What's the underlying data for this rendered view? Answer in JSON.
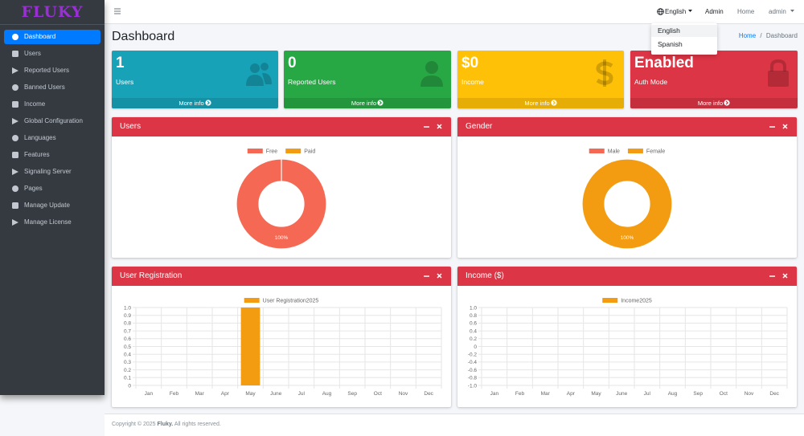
{
  "brand": "FLUKY",
  "sidebar": {
    "items": [
      "Dashboard",
      "Users",
      "Reported Users",
      "Banned Users",
      "Income",
      "Global Configuration",
      "Languages",
      "Features",
      "Signaling Server",
      "Pages",
      "Manage Update",
      "Manage License"
    ]
  },
  "navbar": {
    "language": "English",
    "links": [
      "Admin",
      "Home"
    ],
    "user": "admin",
    "dropdown": [
      "English",
      "Spanish"
    ]
  },
  "page": {
    "title": "Dashboard",
    "breadcrumb": [
      "Home",
      "Dashboard"
    ]
  },
  "info_boxes": [
    {
      "value": "1",
      "label": "Users",
      "link": "More info",
      "color": "#17a2b8"
    },
    {
      "value": "0",
      "label": "Reported Users",
      "link": "More info",
      "color": "#28a745"
    },
    {
      "value": "$0",
      "label": "Income",
      "link": "More info",
      "color": "#ffc107"
    },
    {
      "value": "Enabled",
      "label": "Auth Mode",
      "link": "More info",
      "color": "#dc3545"
    }
  ],
  "chart_data": [
    {
      "type": "doughnut",
      "title": "Users",
      "categories": [
        "Free",
        "Paid"
      ],
      "values": [
        100,
        0
      ],
      "value_labels": [
        "100%",
        null
      ],
      "colors": [
        "#f56954",
        "#f39c12"
      ]
    },
    {
      "type": "doughnut",
      "title": "Gender",
      "categories": [
        "Male",
        "Female"
      ],
      "values": [
        0,
        100
      ],
      "value_labels": [
        null,
        "100%"
      ],
      "colors": [
        "#f56954",
        "#f39c12"
      ]
    },
    {
      "type": "bar",
      "title": "User Registration",
      "categories": [
        "Jan",
        "Feb",
        "Mar",
        "Apr",
        "May",
        "June",
        "Jul",
        "Aug",
        "Sep",
        "Oct",
        "Nov",
        "Dec"
      ],
      "series": [
        {
          "name": "User Registration2025",
          "color": "#f39c12",
          "values": [
            0,
            0,
            0,
            0,
            1,
            0,
            0,
            0,
            0,
            0,
            0,
            0
          ]
        }
      ],
      "ylim": [
        0,
        1
      ],
      "yticks": [
        0,
        0.1,
        0.2,
        0.3,
        0.4,
        0.5,
        0.6,
        0.7,
        0.8,
        0.9,
        {
          "value": 1,
          "label": "1.0"
        }
      ],
      "grid": true
    },
    {
      "type": "bar",
      "title": "Income ($)",
      "categories": [
        "Jan",
        "Feb",
        "Mar",
        "Apr",
        "May",
        "June",
        "Jul",
        "Aug",
        "Sep",
        "Oct",
        "Nov",
        "Dec"
      ],
      "series": [
        {
          "name": "Income2025",
          "color": "#f39c12",
          "values": [
            0,
            0,
            0,
            0,
            0,
            0,
            0,
            0,
            0,
            0,
            0,
            0
          ]
        }
      ],
      "ylim": [
        -1,
        1
      ],
      "yticks": [
        {
          "value": -1,
          "label": "-1.0"
        },
        -0.8,
        -0.6,
        -0.4,
        -0.2,
        0,
        0.2,
        0.4,
        0.6,
        0.8,
        {
          "value": 1,
          "label": "1.0"
        }
      ],
      "grid": true
    }
  ],
  "footer": [
    "Copyright © 2025",
    "Fluky.",
    "All rights reserved."
  ]
}
